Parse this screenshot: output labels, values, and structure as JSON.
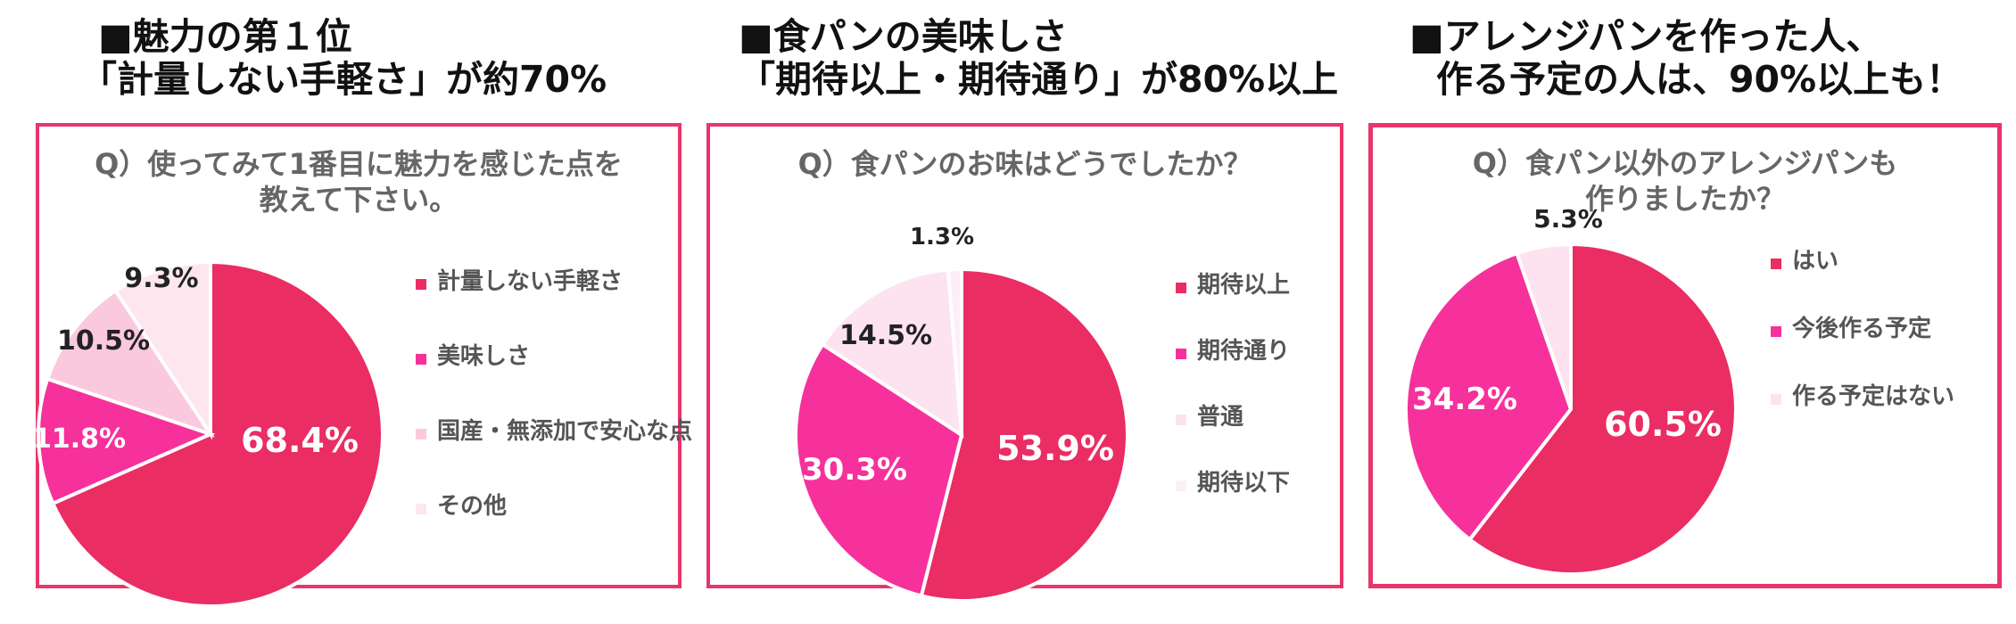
{
  "colors": {
    "border": "#e8356b"
  },
  "panels": [
    {
      "headline": [
        "■魅力の第１位",
        "「計量しない手軽さ」が約70%"
      ],
      "question": [
        "Q）使ってみて1番目に魅力を感じた点を",
        "教えて下さい。"
      ]
    },
    {
      "headline": [
        "■食パンの美味しさ",
        "「期待以上・期待通り」が80%以上"
      ],
      "question": [
        "Q）食パンのお味はどうでしたか？"
      ]
    },
    {
      "headline": [
        "■アレンジパンを作った人、",
        "作る予定の人は、90%以上も！"
      ],
      "question": [
        "Q）食パン以外のアレンジパンも",
        "作りましたか？"
      ]
    }
  ],
  "chart_data": [
    {
      "type": "pie",
      "categories": [
        "計量しない手軽さ",
        "美味しさ",
        "国産・無添加で安心な点",
        "その他"
      ],
      "values": [
        68.4,
        11.8,
        10.5,
        9.3
      ],
      "labels": [
        "68.4%",
        "11.8%",
        "10.5%",
        "9.3%"
      ],
      "colors": [
        "#ea2d63",
        "#f6319b",
        "#fbc9de",
        "#fde6ee"
      ]
    },
    {
      "type": "pie",
      "categories": [
        "期待以上",
        "期待通り",
        "普通",
        "期待以下"
      ],
      "values": [
        53.9,
        30.3,
        14.5,
        1.3
      ],
      "labels": [
        "53.9%",
        "30.3%",
        "14.5%",
        "1.3%"
      ],
      "colors": [
        "#ea2d63",
        "#f6319b",
        "#fde3ef",
        "#fdeff5"
      ]
    },
    {
      "type": "pie",
      "categories": [
        "はい",
        "今後作る予定",
        "作る予定はない"
      ],
      "values": [
        60.5,
        34.2,
        5.3
      ],
      "labels": [
        "60.5%",
        "34.2%",
        "5.3%"
      ],
      "colors": [
        "#ea2d63",
        "#f6319b",
        "#fde3ef"
      ]
    }
  ]
}
